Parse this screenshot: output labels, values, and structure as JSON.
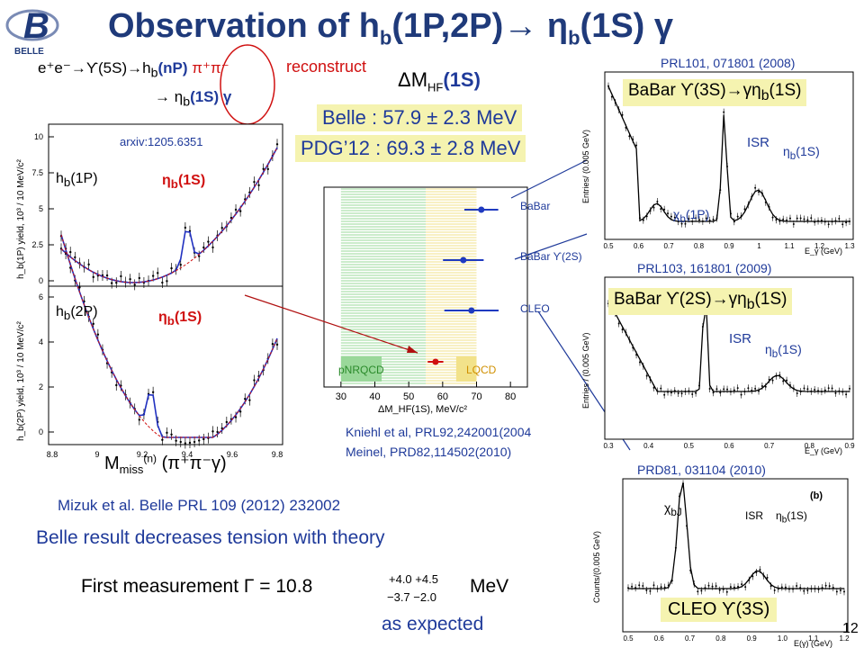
{
  "title": {
    "main": "Observation of  h",
    "sub1": "b",
    "mid": "(1P,2P)",
    "arrow": "→",
    "eta": "η",
    "sub2": "b",
    "tail": "(1S) γ"
  },
  "logo": {
    "letter": "B",
    "text": "BELLE"
  },
  "reaction": {
    "line1_pre": "e⁺e⁻→ϒ(5S)→h",
    "line1_sub": "b",
    "line1_nP": "(nP)",
    "line1_pipi": "π⁺π⁻",
    "line2": "→ η",
    "line2_sub": "b",
    "line2_tail": "(1S) γ",
    "reconstruct": "reconstruct"
  },
  "dmhf": {
    "label": "ΔM",
    "sub": "HF",
    "tail": "(1S)"
  },
  "belle_value": "Belle : 57.9 ± 2.3 MeV",
  "pdg_value": "PDG’12 : 69.3 ± 2.8 MeV",
  "left_plot": {
    "arxiv": "arxiv:1205.6351",
    "top_label_hb": "h",
    "top_label_hb_sub": "b",
    "top_label_hb_tail": "(1P)",
    "top_eta": "η",
    "top_eta_sub": "b",
    "top_eta_tail": "(1S)",
    "bot_label_hb": "h",
    "bot_label_hb_sub": "b",
    "bot_label_hb_tail": "(2P)",
    "bot_eta": "η",
    "bot_eta_sub": "b",
    "bot_eta_tail": "(1S)",
    "ylabel_top": "h_b(1P) yield, 10³ / 10 MeV/c²",
    "ylabel_bot": "h_b(2P) yield, 10³ / 10 MeV/c²",
    "yticks_top": [
      "10",
      "7.5",
      "5",
      "2.5",
      "0"
    ],
    "yticks_bot": [
      "6",
      "4",
      "2",
      "0"
    ],
    "xticks": [
      "8.8",
      "9",
      "9.2",
      "9.4",
      "9.6",
      "9.8"
    ],
    "xlabel_M": "M",
    "xlabel_sub": "miss",
    "xlabel_sup": "(n)",
    "xlabel_tail": "(π⁺π⁻γ)"
  },
  "mizuk": "Mizuk et al. Belle PRL 109 (2012) 232002",
  "tension": "Belle result decreases tension with theory",
  "first_measurement": {
    "pre": "First measurement  Γ = 10.8",
    "up": "+4.0  +4.5",
    "down": "−3.7  −2.0",
    "unit": "MeV"
  },
  "as_expected": "as expected",
  "center_plot": {
    "labels": [
      "BaBar",
      "BaBar ϒ(2S)",
      "CLEO"
    ],
    "pnrqcd": "pNRQCD",
    "lqcd": "LQCD",
    "xticks": [
      "30",
      "40",
      "50",
      "60",
      "70",
      "80"
    ],
    "xlabel": "ΔM_HF(1S), MeV/c²",
    "ref1": "Kniehl et al, PRL92,242001(2004",
    "ref2": "Meinel, PRD82,114502(2010)"
  },
  "right": {
    "ref1": "PRL101, 071801 (2008)",
    "box1": "BaBar ϒ(3S)→γη",
    "box1_sub": "b",
    "box1_tail": "(1S)",
    "isr1": "ISR",
    "etab1": "η",
    "etab1_sub": "b",
    "etab1_tail": "(1S)",
    "chib1": "χ",
    "chib1_sub": "b",
    "chib1_tail": "(1P)",
    "ylabel1": "Entries/ (0.005 GeV)",
    "xticks1": [
      "0.5",
      "0.6",
      "0.7",
      "0.8",
      "0.9",
      "1",
      "1.1",
      "1.2",
      "1.3"
    ],
    "xlabel1": "E_γ (GeV)",
    "ref2": "PRL103, 161801 (2009)",
    "box2": "BaBar ϒ(2S)→γη",
    "box2_sub": "b",
    "box2_tail": "(1S)",
    "isr2": "ISR",
    "etab2": "η",
    "etab2_sub": "b",
    "etab2_tail": "(1S)",
    "ylabel2": "Entries / (0.005 GeV)",
    "xticks2": [
      "0.3",
      "0.4",
      "0.5",
      "0.6",
      "0.7",
      "0.8",
      "0.9"
    ],
    "xlabel2": "E_γ (GeV)",
    "ref3": "PRD81, 031104 (2010)",
    "box3": "CLEO ϒ(3S)",
    "label_b": "(b)",
    "chibj": "χ",
    "chibj_sub": "bJ",
    "isr3": "ISR",
    "etab3": "η",
    "etab3_sub": "b",
    "etab3_tail": "(1S)",
    "ylabel3": "Counts/(0.005 GeV)",
    "xticks3": [
      "0.5",
      "0.6",
      "0.7",
      "0.8",
      "0.9",
      "1.0",
      "1.1",
      "1.2"
    ],
    "xlabel3": "E(γ) (GeV)"
  },
  "slide_number": "12",
  "colors": {
    "title": "#1f3a7a",
    "accent_red": "#d01010",
    "blue_text": "#1f3a9a",
    "highlight": "#f5f3b0",
    "fit_blue": "#2030c0"
  }
}
